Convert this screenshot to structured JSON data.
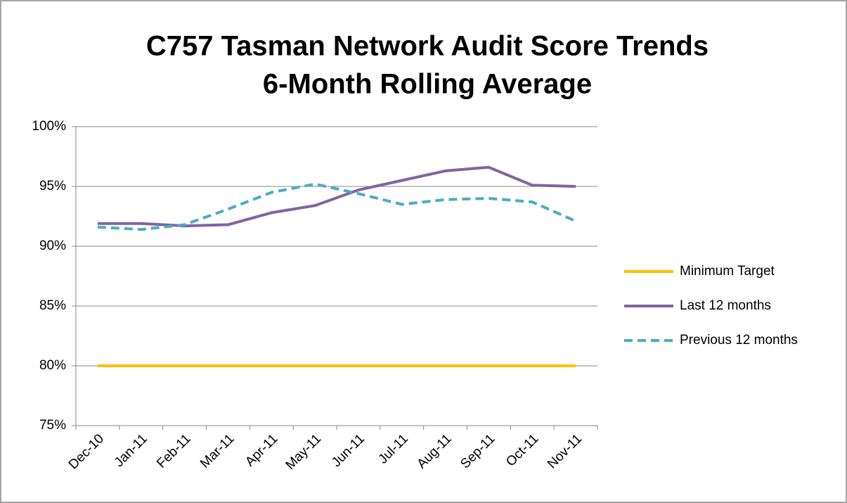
{
  "chart_data": {
    "type": "line",
    "title": "C757 Tasman Network Audit Score Trends",
    "subtitle": "6-Month Rolling Average",
    "categories": [
      "Dec-10",
      "Jan-11",
      "Feb-11",
      "Mar-11",
      "Apr-11",
      "May-11",
      "Jun-11",
      "Jul-11",
      "Aug-11",
      "Sep-11",
      "Oct-11",
      "Nov-11"
    ],
    "series": [
      {
        "name": "Minimum Target",
        "color": "#ffc000",
        "dash": false,
        "values": [
          80,
          80,
          80,
          80,
          80,
          80,
          80,
          80,
          80,
          80,
          80,
          80
        ]
      },
      {
        "name": "Last 12 months",
        "color": "#8064a2",
        "dash": false,
        "values": [
          91.9,
          91.9,
          91.7,
          91.8,
          92.8,
          93.4,
          94.7,
          95.5,
          96.3,
          96.6,
          95.1,
          95.0
        ]
      },
      {
        "name": "Previous 12 months",
        "color": "#4bacc6",
        "dash": true,
        "values": [
          91.6,
          91.4,
          91.8,
          93.1,
          94.5,
          95.2,
          94.4,
          93.5,
          93.9,
          94.0,
          93.7,
          92.1
        ]
      }
    ],
    "ylim": [
      75,
      100
    ],
    "yticks": [
      {
        "value": 75,
        "label": "75%"
      },
      {
        "value": 80,
        "label": "80%"
      },
      {
        "value": 85,
        "label": "85%"
      },
      {
        "value": 90,
        "label": "90%"
      },
      {
        "value": 95,
        "label": "95%"
      },
      {
        "value": 100,
        "label": "100%"
      }
    ],
    "grid": true,
    "legend": "right"
  }
}
